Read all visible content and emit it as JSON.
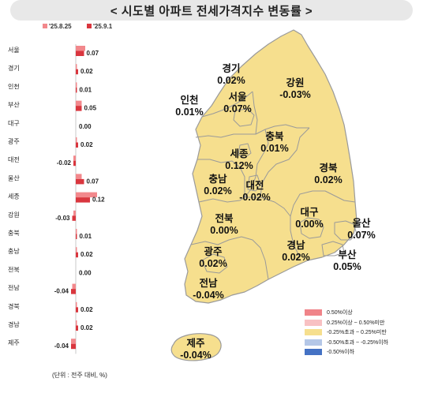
{
  "title": "< 시도별 아파트 전세가격지수 변동률 >",
  "unit_note": "(단위 : 전주 대비, %)",
  "colors": {
    "prev_series": "#f2888c",
    "curr_series": "#d9363e",
    "map_fill": "#f6df8e",
    "map_stroke": "#9a9a9a"
  },
  "chart_data": {
    "type": "bar",
    "orientation": "horizontal",
    "categories": [
      "서울",
      "경기",
      "인천",
      "부산",
      "대구",
      "광주",
      "대전",
      "울산",
      "세종",
      "강원",
      "충북",
      "충남",
      "전북",
      "전남",
      "경북",
      "경남",
      "제주"
    ],
    "series": [
      {
        "name": "'25.8.25",
        "color": "#f2888c",
        "values": [
          0.08,
          0.01,
          0.01,
          0.05,
          0.0,
          0.01,
          -0.02,
          0.05,
          0.18,
          -0.02,
          0.01,
          0.01,
          0.0,
          -0.03,
          0.01,
          0.01,
          -0.04
        ]
      },
      {
        "name": "'25.9.1",
        "color": "#d9363e",
        "values": [
          0.07,
          0.02,
          0.01,
          0.05,
          0.0,
          0.02,
          -0.02,
          0.07,
          0.12,
          -0.03,
          0.01,
          0.02,
          0.0,
          -0.04,
          0.02,
          0.02,
          -0.04
        ]
      }
    ],
    "data_labels": [
      "0.07",
      "0.02",
      "0.01",
      "0.05",
      "0.00",
      "0.02",
      "-0.02",
      "0.07",
      "0.12",
      "-0.03",
      "0.01",
      "0.02",
      "0.00",
      "-0.04",
      "0.02",
      "0.02",
      "-0.04"
    ]
  },
  "map_labels": [
    {
      "id": "seoul",
      "name": "서울",
      "value": "0.07%"
    },
    {
      "id": "gyeonggi",
      "name": "경기",
      "value": "0.02%"
    },
    {
      "id": "incheon",
      "name": "인천",
      "value": "0.01%"
    },
    {
      "id": "gangwon",
      "name": "강원",
      "value": "-0.03%"
    },
    {
      "id": "chungbuk",
      "name": "충북",
      "value": "0.01%"
    },
    {
      "id": "sejong",
      "name": "세종",
      "value": "0.12%"
    },
    {
      "id": "chungnam",
      "name": "충남",
      "value": "0.02%"
    },
    {
      "id": "daejeon",
      "name": "대전",
      "value": "-0.02%"
    },
    {
      "id": "gyeongbuk",
      "name": "경북",
      "value": "0.02%"
    },
    {
      "id": "jeonbuk",
      "name": "전북",
      "value": "0.00%"
    },
    {
      "id": "daegu",
      "name": "대구",
      "value": "0.00%"
    },
    {
      "id": "ulsan",
      "name": "울산",
      "value": "0.07%"
    },
    {
      "id": "gwangju",
      "name": "광주",
      "value": "0.02%"
    },
    {
      "id": "gyeongnam",
      "name": "경남",
      "value": "0.02%"
    },
    {
      "id": "busan",
      "name": "부산",
      "value": "0.05%"
    },
    {
      "id": "jeonnam",
      "name": "전남",
      "value": "-0.04%"
    },
    {
      "id": "jeju",
      "name": "제주",
      "value": "-0.04%"
    }
  ],
  "legend": [
    {
      "label": "0.50%이상",
      "color": "#f08489"
    },
    {
      "label": "0.25%이상 ~ 0.50%미만",
      "color": "#f8c1c3"
    },
    {
      "label": "-0.25%초과 ~ 0.25%미만",
      "color": "#f6df8e"
    },
    {
      "label": "-0.50%초과 ~ -0.25%이하",
      "color": "#b4c7e7"
    },
    {
      "label": "-0.50%이하",
      "color": "#4472c4"
    }
  ]
}
